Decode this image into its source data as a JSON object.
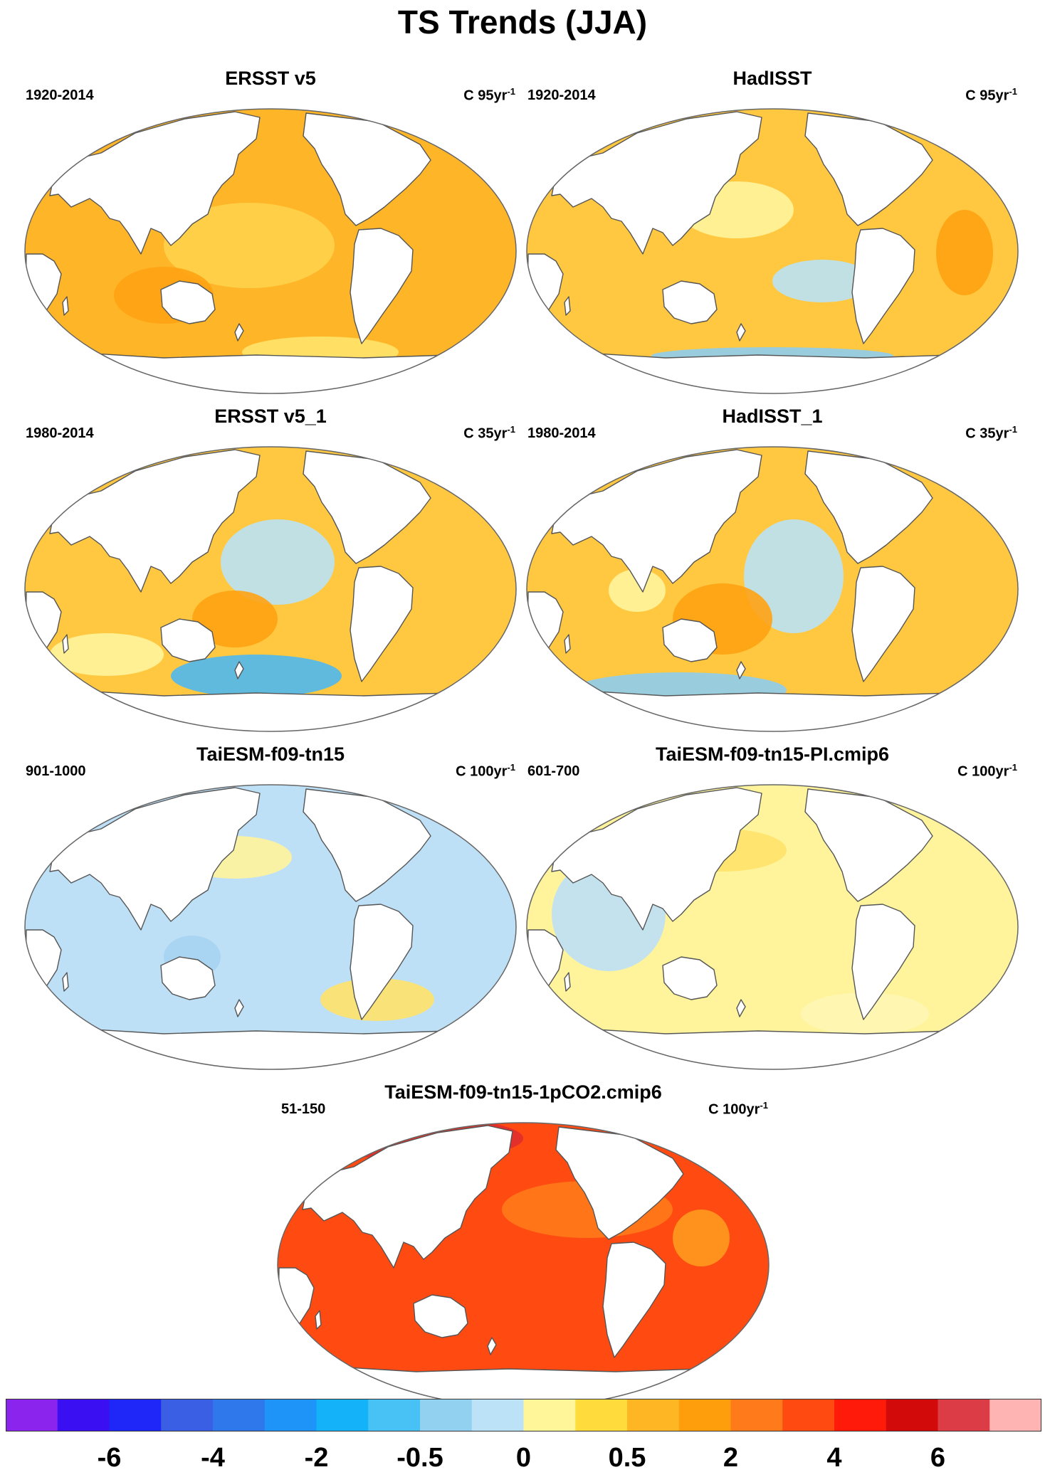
{
  "figure": {
    "title": "TS Trends (JJA)"
  },
  "panels": [
    {
      "title": "ERSST v5",
      "period": "1920-2014",
      "units_base": "C 95yr",
      "units_exp": "-1",
      "ocean": "#FFB528",
      "blobs": [
        "#FFD34A",
        "#FFA212",
        "#FFE36A"
      ]
    },
    {
      "title": "HadISST",
      "period": "1920-2014",
      "units_base": "C 95yr",
      "units_exp": "-1",
      "ocean": "#FFC840",
      "blobs": [
        "#FFF49C",
        "#B9E2F6",
        "#FFA212",
        "#8ECDF0"
      ]
    },
    {
      "title": "ERSST v5_1",
      "period": "1980-2014",
      "units_base": "C 35yr",
      "units_exp": "-1",
      "ocean": "#FFC840",
      "blobs": [
        "#B9E2F6",
        "#4FB8F0",
        "#FFA212",
        "#FFF49C"
      ]
    },
    {
      "title": "HadISST_1",
      "period": "1980-2014",
      "units_base": "C 35yr",
      "units_exp": "-1",
      "ocean": "#FFC840",
      "blobs": [
        "#B9E2F6",
        "#8ECDF0",
        "#FFA212",
        "#FFF49C"
      ]
    },
    {
      "title": "TaiESM-f09-tn15",
      "period": "901-1000",
      "units_base": "C 100yr",
      "units_exp": "-1",
      "ocean": "#BEE0F6",
      "blobs": [
        "#FFF49C",
        "#FFE36A",
        "#A6D4F2"
      ]
    },
    {
      "title": "TaiESM-f09-tn15-PI.cmip6",
      "period": "601-700",
      "units_base": "C 100yr",
      "units_exp": "-1",
      "ocean": "#FFF49C",
      "blobs": [
        "#BEE0F6",
        "#FFE36A",
        "#FFF7B4"
      ]
    },
    {
      "title": "TaiESM-f09-tn15-1pCO2.cmip6",
      "period": "51-150",
      "units_base": "C 100yr",
      "units_exp": "-1",
      "ocean": "#FF4A12",
      "blobs": [
        "#FF7A1A",
        "#E02E2E",
        "#FF9A1E"
      ]
    }
  ],
  "colorbar": {
    "colors": [
      "#8B24EC",
      "#3A10F2",
      "#1E26F8",
      "#3A5EE4",
      "#2E78EC",
      "#1E94F8",
      "#14B2F8",
      "#48C2F4",
      "#92D2F0",
      "#BCE2F8",
      "#FFF69A",
      "#FFDC3C",
      "#FFB624",
      "#FF9E0C",
      "#FF7A1A",
      "#FF4A12",
      "#FF1A0A",
      "#D20A0A",
      "#DC3C46",
      "#FFB4B4"
    ],
    "labels": [
      "-6",
      "-4",
      "-2",
      "-0.5",
      "0",
      "0.5",
      "2",
      "4",
      "6"
    ]
  }
}
